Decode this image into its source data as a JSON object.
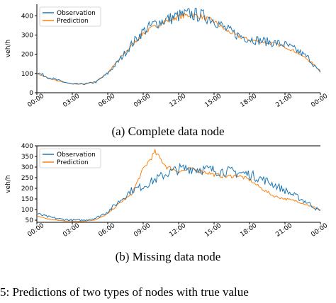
{
  "chart_data": [
    {
      "type": "line",
      "caption": "(a) Complete data node",
      "ylabel": "veh/h",
      "xlabel": "",
      "x_ticks": [
        "00:00",
        "03:00",
        "06:00",
        "09:00",
        "12:00",
        "15:00",
        "18:00",
        "21:00",
        "00:00"
      ],
      "y_ticks": [
        0,
        100,
        200,
        300,
        400
      ],
      "ylim": [
        0,
        460
      ],
      "x_range_hours": [
        0,
        24
      ],
      "legend_position": "upper-left",
      "grid": false,
      "series": [
        {
          "name": "Observation",
          "color": "#1f77b4",
          "x": [
            0,
            1,
            2,
            3,
            4,
            5,
            6,
            7,
            8,
            9,
            10,
            11,
            12,
            13,
            14,
            15,
            16,
            17,
            18,
            19,
            20,
            21,
            22,
            23,
            24
          ],
          "y": [
            105,
            80,
            60,
            45,
            45,
            55,
            100,
            170,
            250,
            320,
            360,
            380,
            400,
            410,
            400,
            380,
            330,
            300,
            280,
            270,
            260,
            250,
            220,
            180,
            100
          ]
        },
        {
          "name": "Prediction",
          "color": "#ff7f0e",
          "x": [
            0,
            1,
            2,
            3,
            4,
            5,
            6,
            7,
            8,
            9,
            10,
            11,
            12,
            13,
            14,
            15,
            16,
            17,
            18,
            19,
            20,
            21,
            22,
            23,
            24
          ],
          "y": [
            100,
            75,
            58,
            45,
            46,
            58,
            105,
            175,
            245,
            310,
            345,
            375,
            395,
            405,
            395,
            370,
            325,
            295,
            275,
            265,
            255,
            240,
            210,
            170,
            115
          ]
        }
      ]
    },
    {
      "type": "line",
      "caption": "(b) Missing data node",
      "ylabel": "veh/h",
      "xlabel": "",
      "x_ticks": [
        "00:00",
        "03:00",
        "06:00",
        "09:00",
        "12:00",
        "15:00",
        "18:00",
        "21:00",
        "00:00"
      ],
      "y_ticks": [
        50,
        100,
        150,
        200,
        250,
        300,
        350,
        400
      ],
      "ylim": [
        40,
        400
      ],
      "x_range_hours": [
        0,
        24
      ],
      "legend_position": "upper-left",
      "grid": false,
      "series": [
        {
          "name": "Observation",
          "color": "#1f77b4",
          "x": [
            0,
            1,
            2,
            3,
            4,
            5,
            6,
            7,
            8,
            9,
            10,
            11,
            12,
            13,
            14,
            15,
            16,
            17,
            18,
            19,
            20,
            21,
            22,
            23,
            24
          ],
          "y": [
            80,
            65,
            55,
            50,
            50,
            60,
            90,
            140,
            190,
            210,
            240,
            270,
            290,
            295,
            290,
            285,
            280,
            275,
            265,
            245,
            220,
            190,
            160,
            130,
            90
          ]
        },
        {
          "name": "Prediction",
          "color": "#ff7f0e",
          "x": [
            0,
            1,
            2,
            3,
            4,
            5,
            6,
            7,
            8,
            9,
            10,
            11,
            12,
            13,
            14,
            15,
            16,
            17,
            18,
            19,
            20,
            21,
            22,
            23,
            24
          ],
          "y": [
            70,
            55,
            48,
            45,
            45,
            52,
            80,
            130,
            170,
            290,
            370,
            300,
            280,
            290,
            280,
            265,
            255,
            260,
            240,
            200,
            165,
            150,
            140,
            120,
            100
          ]
        }
      ]
    }
  ],
  "footer_text": "5: Predictions of two types of nodes with true value"
}
